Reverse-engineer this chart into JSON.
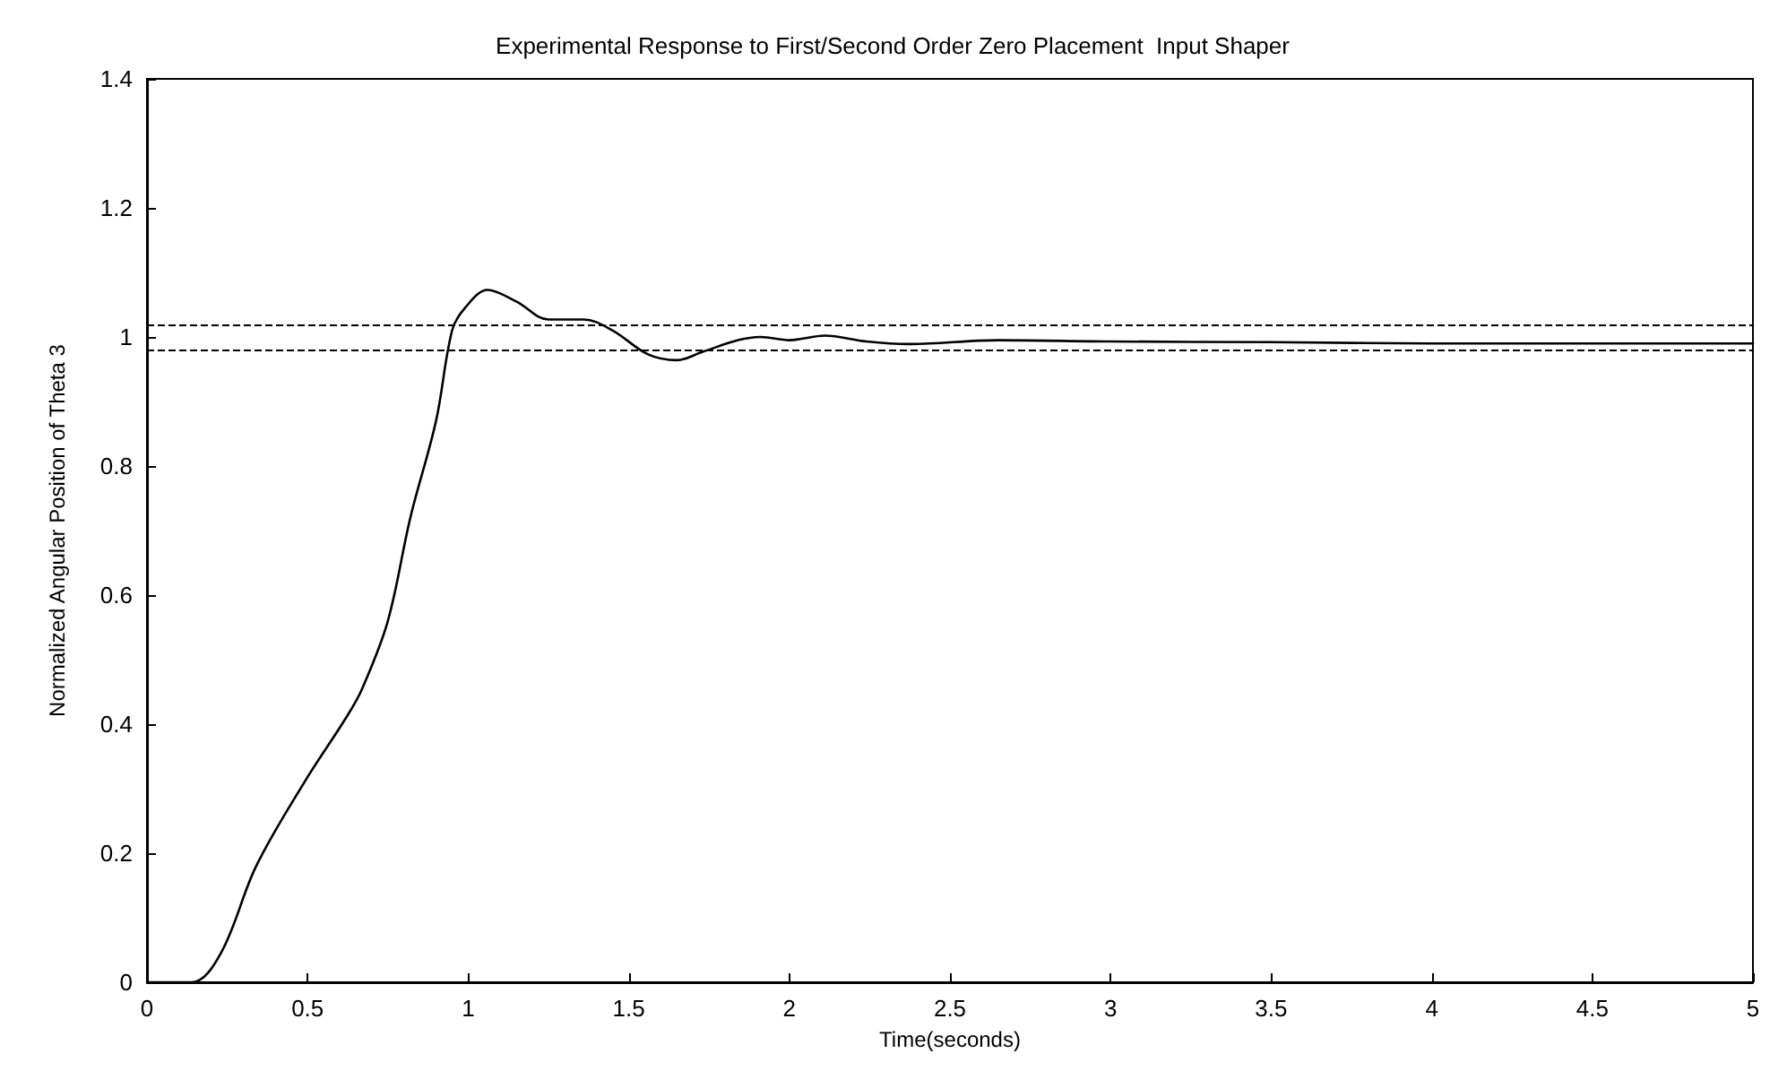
{
  "chart_data": {
    "type": "line",
    "title": "Experimental Response to First/Second Order Zero Placement  Input Shaper",
    "xlabel": "Time(seconds)",
    "ylabel": "Normalized Angular Position of Theta 3",
    "x": [
      0,
      0.14,
      0.23,
      0.34,
      0.49,
      0.62,
      0.67,
      0.75,
      0.82,
      0.9,
      0.95,
      0.99,
      1.06,
      1.15,
      1.25,
      1.36,
      1.45,
      1.56,
      1.65,
      1.73,
      1.84,
      1.91,
      2.0,
      2.11,
      2.24,
      2.37,
      2.65,
      3.0,
      3.5,
      4.0,
      4.5,
      5.0
    ],
    "series": [
      {
        "color": "#000000",
        "values": [
          0,
          0,
          0.045,
          0.18,
          0.31,
          0.41,
          0.455,
          0.56,
          0.72,
          0.87,
          1.01,
          1.045,
          1.073,
          1.055,
          1.027,
          1.027,
          1.01,
          0.973,
          0.964,
          0.977,
          0.995,
          1.0,
          0.995,
          1.002,
          0.993,
          0.989,
          0.995,
          0.993,
          0.992,
          0.99,
          0.99,
          0.99
        ]
      }
    ],
    "xlim": [
      0,
      5
    ],
    "xticks": [
      0,
      0.5,
      1,
      1.5,
      2,
      2.5,
      3,
      3.5,
      4,
      4.5,
      5
    ],
    "ylim": [
      0,
      1.4
    ],
    "yticks": [
      0,
      0.2,
      0.4,
      0.6,
      0.8,
      1,
      1.2,
      1.4
    ],
    "ref_lines": [
      {
        "axis": "y",
        "value": 1.02,
        "color": "#000000",
        "line_style": "dashed"
      },
      {
        "axis": "y",
        "value": 0.98,
        "color": "#000000",
        "line_style": "dashed"
      }
    ],
    "grid": false,
    "marker": "none",
    "line_style": "solid"
  }
}
